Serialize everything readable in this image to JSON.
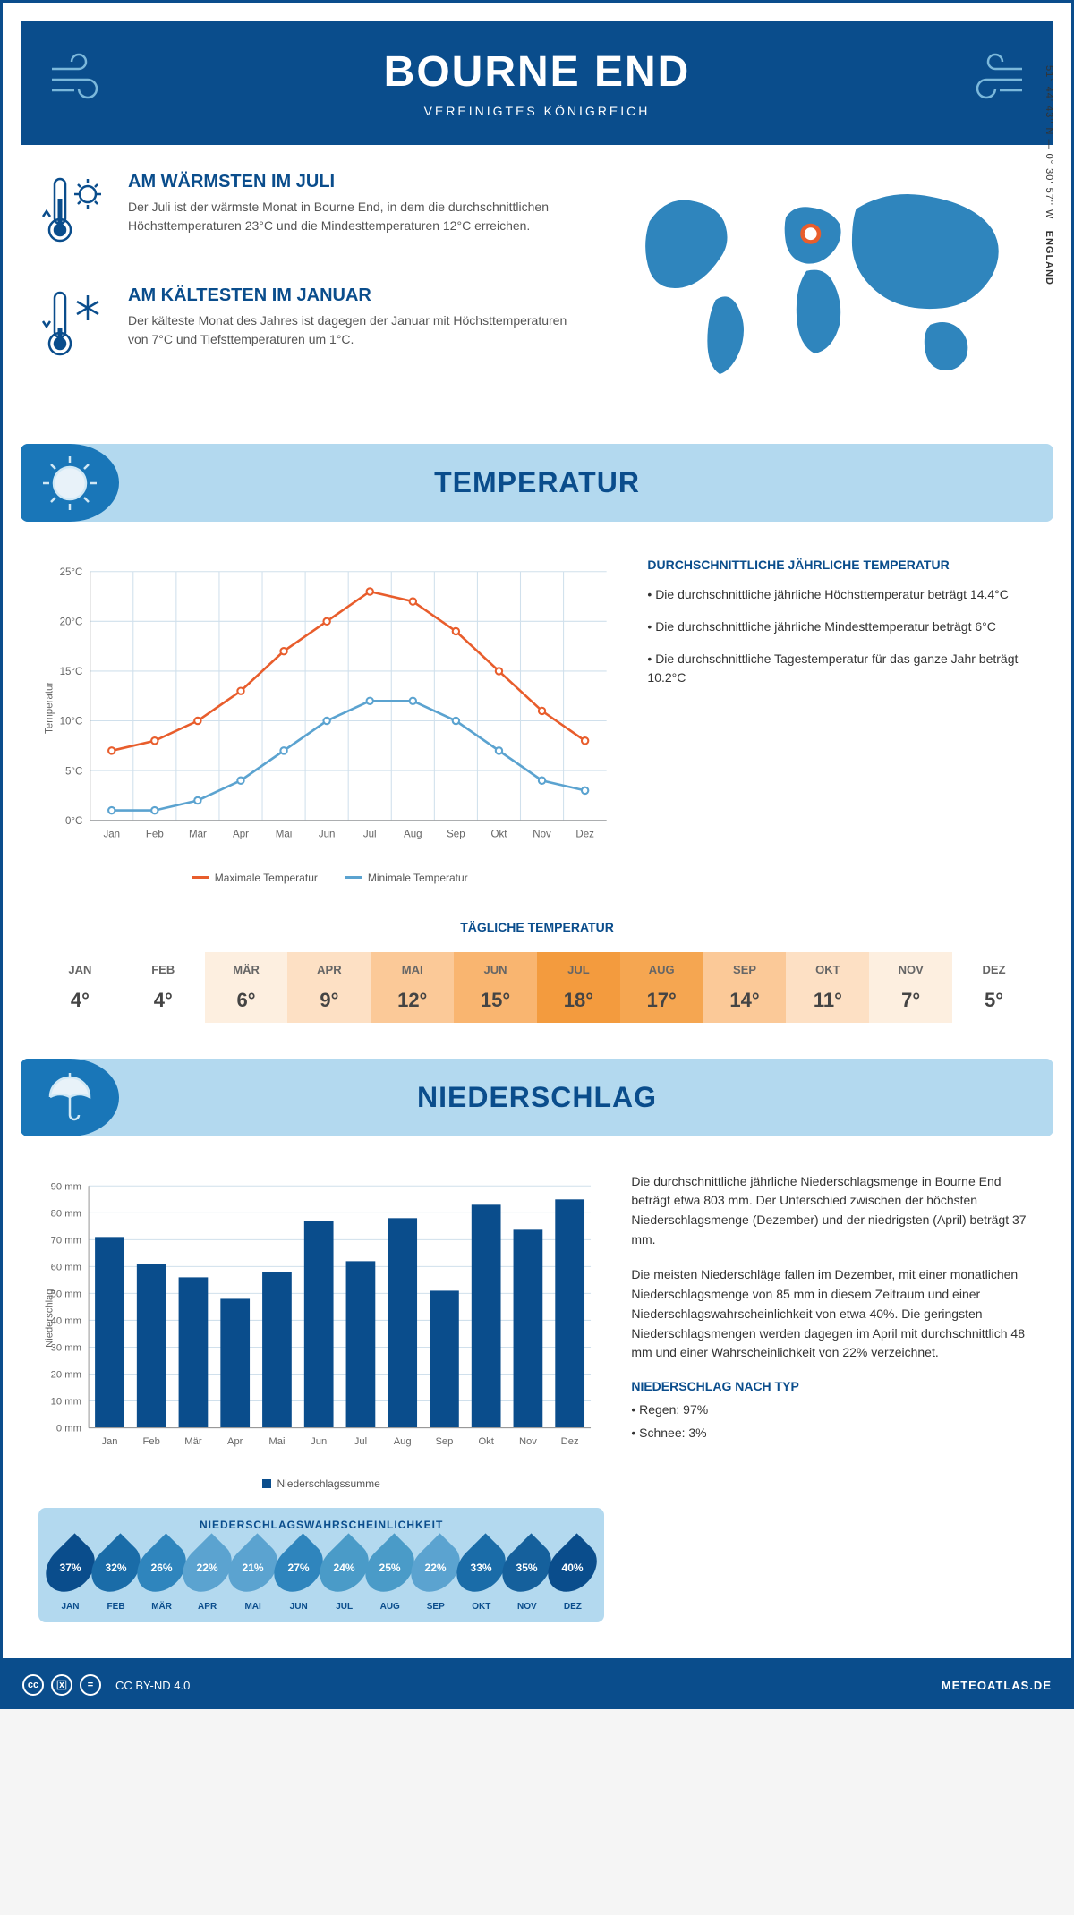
{
  "header": {
    "title": "BOURNE END",
    "subtitle": "VEREINIGTES KÖNIGREICH"
  },
  "coords": "51° 44' 43'' N — 0° 30' 57'' W",
  "country_label": "ENGLAND",
  "facts": {
    "warm": {
      "title": "AM WÄRMSTEN IM JULI",
      "text": "Der Juli ist der wärmste Monat in Bourne End, in dem die durchschnittlichen Höchsttemperaturen 23°C und die Mindesttemperaturen 12°C erreichen."
    },
    "cold": {
      "title": "AM KÄLTESTEN IM JANUAR",
      "text": "Der kälteste Monat des Jahres ist dagegen der Januar mit Höchsttemperaturen von 7°C und Tiefsttemperaturen um 1°C."
    }
  },
  "sections": {
    "temperature": "TEMPERATUR",
    "precipitation": "NIEDERSCHLAG"
  },
  "temp_chart": {
    "ylabel": "Temperatur",
    "ylim": [
      0,
      25
    ],
    "ytick_step": 5,
    "y_suffix": "°C",
    "months": [
      "Jan",
      "Feb",
      "Mär",
      "Apr",
      "Mai",
      "Jun",
      "Jul",
      "Aug",
      "Sep",
      "Okt",
      "Nov",
      "Dez"
    ],
    "max_series": {
      "label": "Maximale Temperatur",
      "color": "#e85d2c",
      "values": [
        7,
        8,
        10,
        13,
        17,
        20,
        23,
        22,
        19,
        15,
        11,
        8
      ]
    },
    "min_series": {
      "label": "Minimale Temperatur",
      "color": "#5ba3d0",
      "values": [
        1,
        1,
        2,
        4,
        7,
        10,
        12,
        12,
        10,
        7,
        4,
        3
      ]
    },
    "grid_color": "#d0e0ec",
    "background": "#ffffff"
  },
  "temp_info": {
    "heading": "DURCHSCHNITTLICHE JÄHRLICHE TEMPERATUR",
    "bullets": [
      "• Die durchschnittliche jährliche Höchsttemperatur beträgt 14.4°C",
      "• Die durchschnittliche jährliche Mindesttemperatur beträgt 6°C",
      "• Die durchschnittliche Tagestemperatur für das ganze Jahr beträgt 10.2°C"
    ]
  },
  "daily_temp": {
    "heading": "TÄGLICHE TEMPERATUR",
    "months": [
      "JAN",
      "FEB",
      "MÄR",
      "APR",
      "MAI",
      "JUN",
      "JUL",
      "AUG",
      "SEP",
      "OKT",
      "NOV",
      "DEZ"
    ],
    "values": [
      "4°",
      "4°",
      "6°",
      "9°",
      "12°",
      "15°",
      "18°",
      "17°",
      "14°",
      "11°",
      "7°",
      "5°"
    ],
    "colors": [
      "#ffffff",
      "#ffffff",
      "#fdefe0",
      "#fde0c4",
      "#fbc998",
      "#f9b570",
      "#f39b3e",
      "#f5a651",
      "#fbc998",
      "#fde0c4",
      "#fdefe0",
      "#ffffff"
    ]
  },
  "precip_chart": {
    "ylabel": "Niederschlag",
    "ylim": [
      0,
      90
    ],
    "ytick_step": 10,
    "y_suffix": " mm",
    "months": [
      "Jan",
      "Feb",
      "Mär",
      "Apr",
      "Mai",
      "Jun",
      "Jul",
      "Aug",
      "Sep",
      "Okt",
      "Nov",
      "Dez"
    ],
    "values": [
      71,
      61,
      56,
      48,
      58,
      77,
      62,
      78,
      51,
      83,
      74,
      85
    ],
    "bar_color": "#0a4d8c",
    "grid_color": "#d0e0ec",
    "legend_label": "Niederschlagssumme"
  },
  "precip_text": {
    "p1": "Die durchschnittliche jährliche Niederschlagsmenge in Bourne End beträgt etwa 803 mm. Der Unterschied zwischen der höchsten Niederschlagsmenge (Dezember) und der niedrigsten (April) beträgt 37 mm.",
    "p2": "Die meisten Niederschläge fallen im Dezember, mit einer monatlichen Niederschlagsmenge von 85 mm in diesem Zeitraum und einer Niederschlagswahrscheinlichkeit von etwa 40%. Die geringsten Niederschlagsmengen werden dagegen im April mit durchschnittlich 48 mm und einer Wahrscheinlichkeit von 22% verzeichnet.",
    "type_heading": "NIEDERSCHLAG NACH TYP",
    "type_bullets": [
      "• Regen: 97%",
      "• Schnee: 3%"
    ]
  },
  "precip_prob": {
    "heading": "NIEDERSCHLAGSWAHRSCHEINLICHKEIT",
    "months": [
      "JAN",
      "FEB",
      "MÄR",
      "APR",
      "MAI",
      "JUN",
      "JUL",
      "AUG",
      "SEP",
      "OKT",
      "NOV",
      "DEZ"
    ],
    "values": [
      "37%",
      "32%",
      "26%",
      "22%",
      "21%",
      "27%",
      "24%",
      "25%",
      "22%",
      "33%",
      "35%",
      "40%"
    ],
    "colors": [
      "#0a4d8c",
      "#1a6ca8",
      "#2f85bd",
      "#5ba3d0",
      "#5ba3d0",
      "#2f85bd",
      "#4a9bc8",
      "#4a9bc8",
      "#5ba3d0",
      "#1a6ca8",
      "#15609c",
      "#0a4d8c"
    ]
  },
  "footer": {
    "license": "CC BY-ND 4.0",
    "site": "METEOATLAS.DE"
  },
  "colors": {
    "primary": "#0a4d8c",
    "light_blue": "#b3d9ef",
    "map_blue": "#2f85bd",
    "marker": "#e85d2c"
  }
}
